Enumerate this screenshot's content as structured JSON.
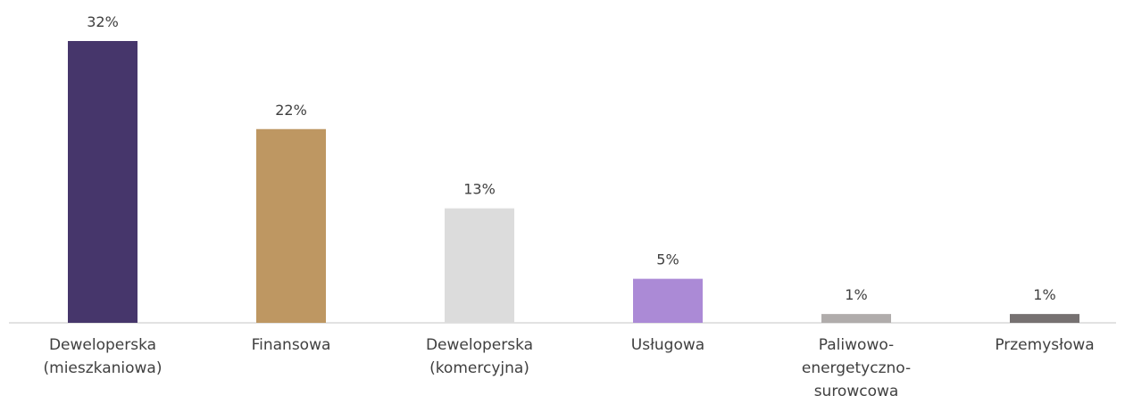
{
  "chart_data": {
    "type": "bar",
    "categories": [
      "Deweloperska (mieszkaniowa)",
      "Finansowa",
      "Deweloperska (komercyjna)",
      "Usługowa",
      "Paliwowo-energetyczno-surowcowa",
      "Przemysłowa"
    ],
    "values": [
      32,
      22,
      13,
      5,
      1,
      1
    ],
    "value_labels": [
      "32%",
      "22%",
      "13%",
      "5%",
      "1%",
      "1%"
    ],
    "colors": [
      "#46366b",
      "#be9762",
      "#dcdcdc",
      "#ab8ad6",
      "#b0acab",
      "#767171"
    ]
  }
}
